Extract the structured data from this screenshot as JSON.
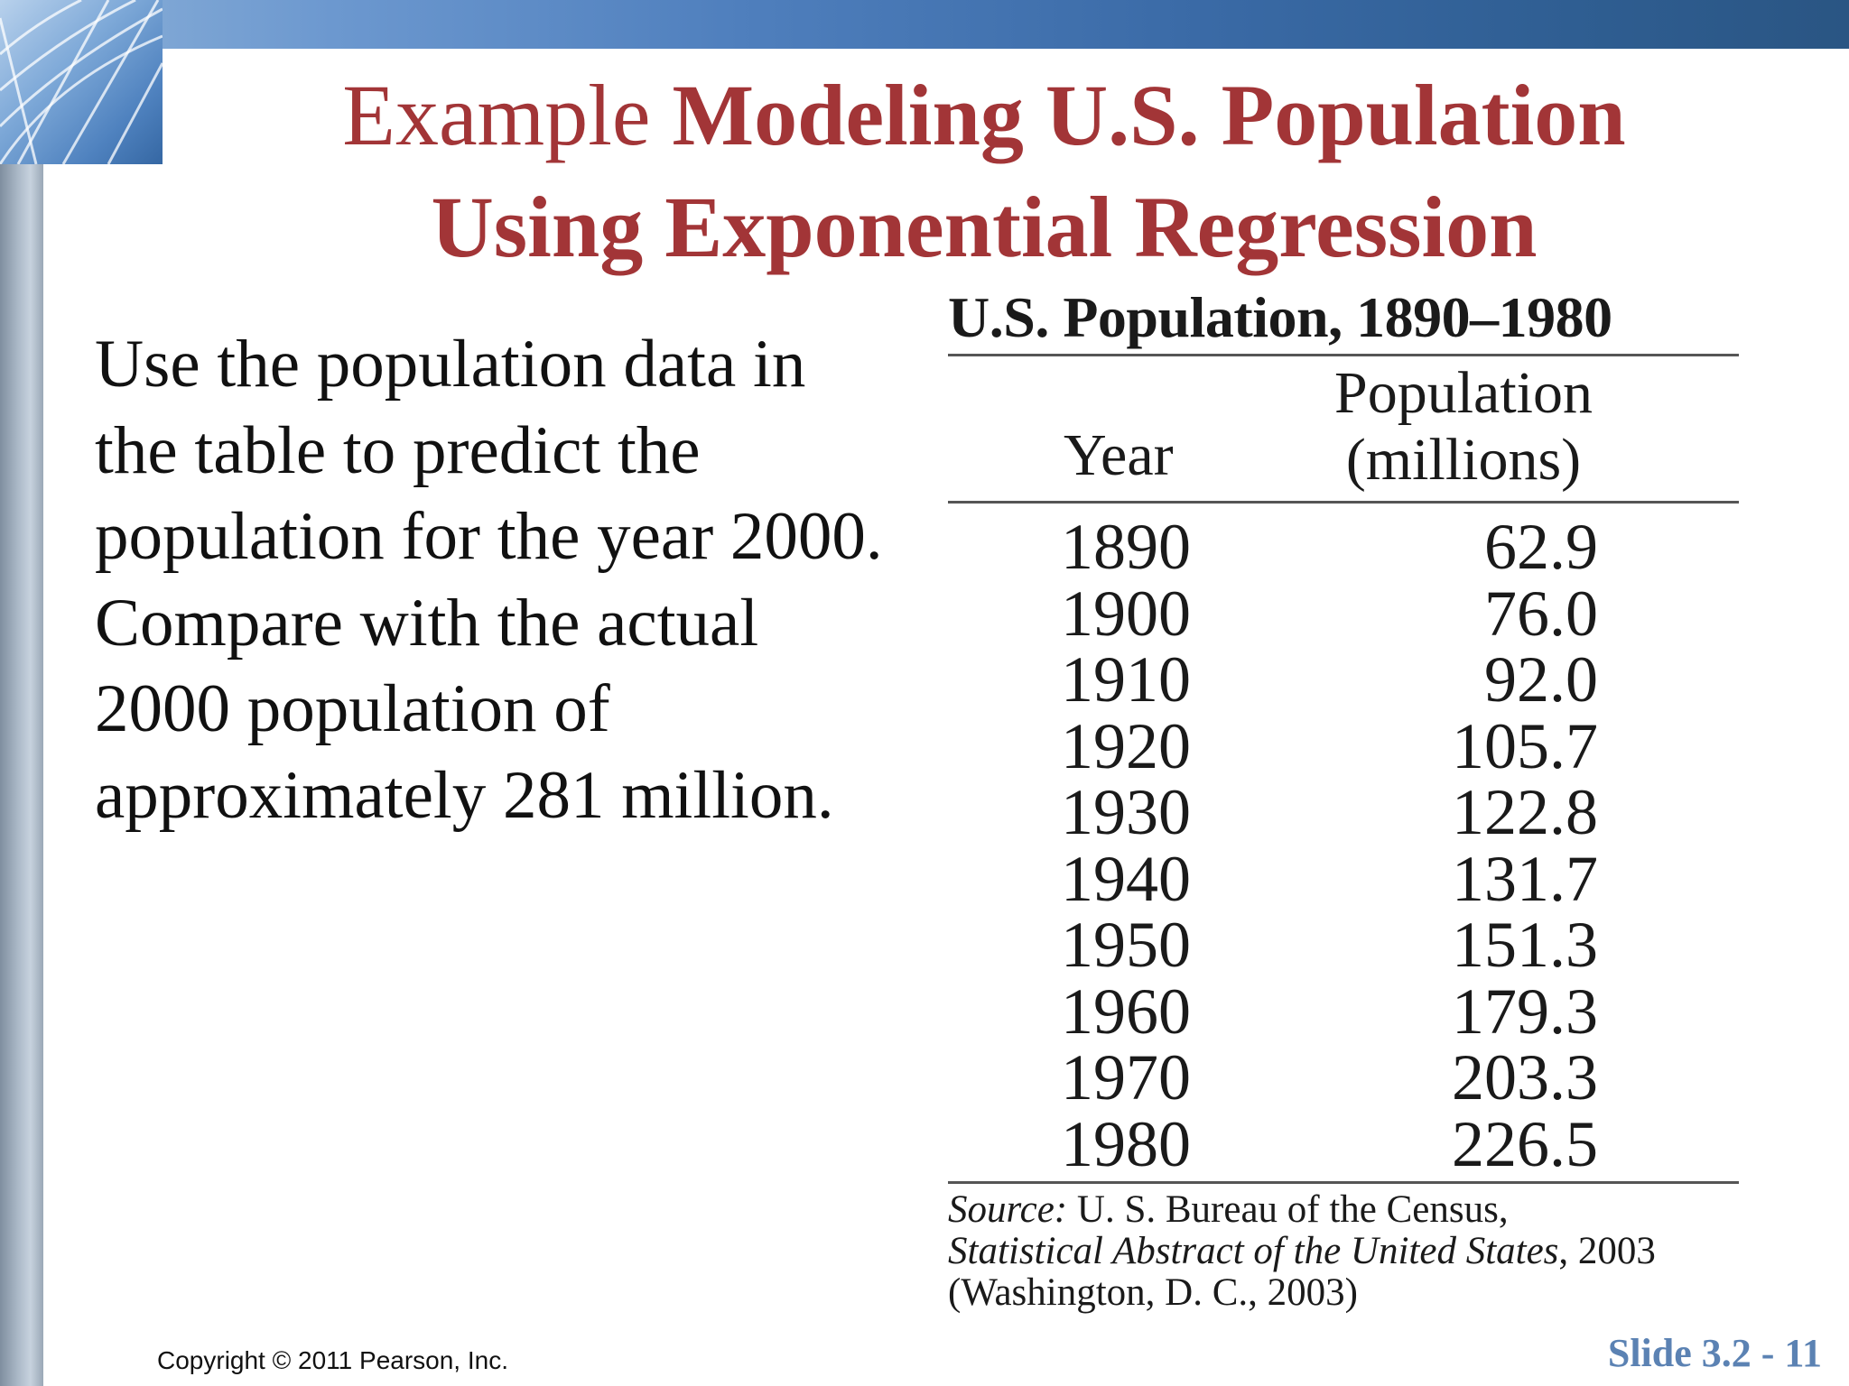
{
  "title": {
    "prefix": "Example",
    "line1_bold": "Modeling U.S. Population",
    "line2_bold": "Using Exponential Regression"
  },
  "body": {
    "paragraph": "Use the population data in the table to predict the population for the year 2000. Compare with the actual 2000 population of approximately 281 million."
  },
  "table": {
    "title": "U.S. Population, 1890–1980",
    "col_year": "Year",
    "col_pop_line1": "Population",
    "col_pop_line2": "(millions)",
    "rows": [
      {
        "year": "1890",
        "pop": "62.9"
      },
      {
        "year": "1900",
        "pop": "76.0"
      },
      {
        "year": "1910",
        "pop": "92.0"
      },
      {
        "year": "1920",
        "pop": "105.7"
      },
      {
        "year": "1930",
        "pop": "122.8"
      },
      {
        "year": "1940",
        "pop": "131.7"
      },
      {
        "year": "1950",
        "pop": "151.3"
      },
      {
        "year": "1960",
        "pop": "179.3"
      },
      {
        "year": "1970",
        "pop": "203.3"
      },
      {
        "year": "1980",
        "pop": "226.5"
      }
    ],
    "source_label": "Source:",
    "source_line1_rest": "U. S. Bureau of the Census,",
    "source_line2_italic": "Statistical Abstract of the United States",
    "source_line2_rest": ", 2003",
    "source_line3": "(Washington, D. C., 2003)"
  },
  "footer": {
    "copyright": "Copyright © 2011 Pearson, Inc.",
    "slide_number": "Slide 3.2 - 11"
  },
  "colors": {
    "title": "#a23537",
    "slide_number": "#5b82b3",
    "top_band": "#3a6aa6"
  }
}
